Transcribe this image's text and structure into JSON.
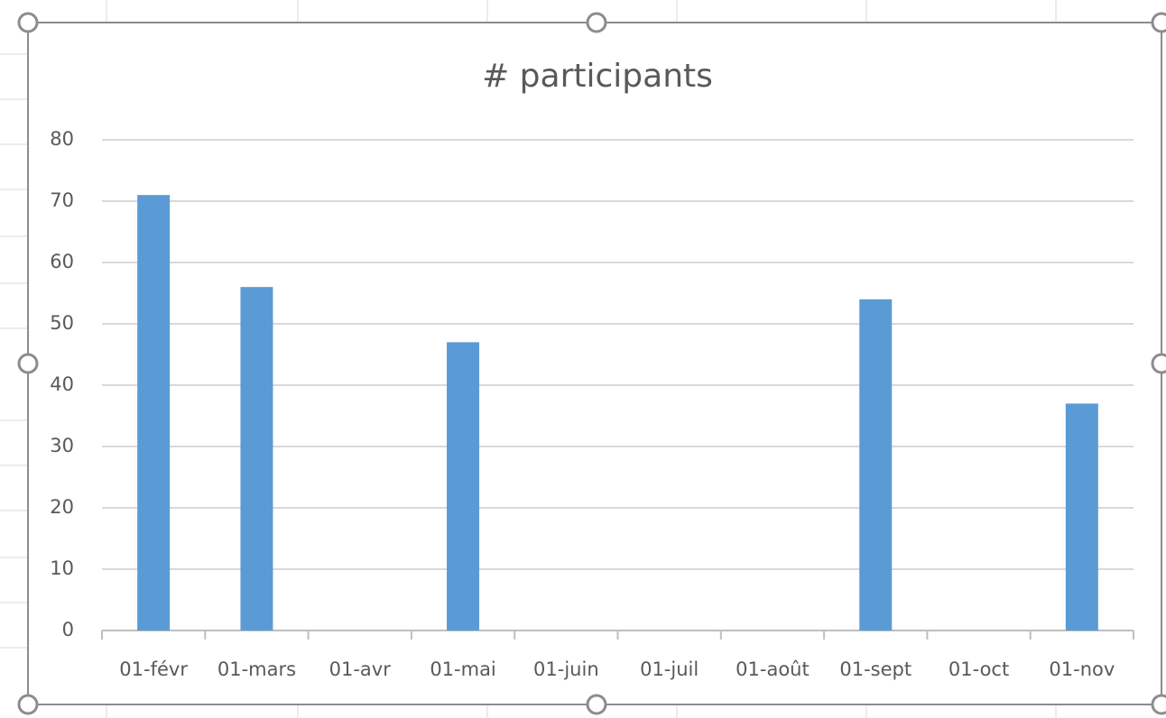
{
  "chart_data": {
    "type": "bar",
    "title": "# participants",
    "categories": [
      "01-févr",
      "01-mars",
      "01-avr",
      "01-mai",
      "01-juin",
      "01-juil",
      "01-août",
      "01-sept",
      "01-oct",
      "01-nov"
    ],
    "values": [
      71,
      56,
      null,
      47,
      null,
      null,
      null,
      54,
      null,
      37
    ],
    "color": "#5b9bd5",
    "ylim": [
      0,
      80
    ],
    "yticks": [
      0,
      10,
      20,
      30,
      40,
      50,
      60,
      70,
      80
    ],
    "grid": true
  }
}
